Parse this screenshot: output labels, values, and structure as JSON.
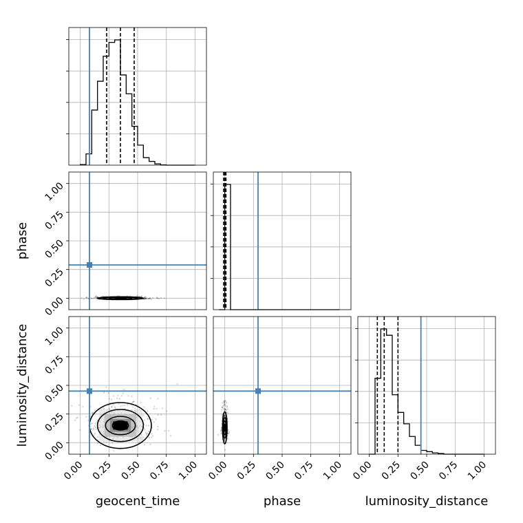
{
  "chart_data": {
    "type": "corner",
    "parameters": [
      "geocent_time",
      "phase",
      "luminosity_distance"
    ],
    "axis_range": [
      -0.1,
      1.1
    ],
    "tick_labels": [
      "0.00",
      "0.25",
      "0.50",
      "0.75",
      "1.00"
    ],
    "tick_values": [
      0,
      0.25,
      0.5,
      0.75,
      1.0
    ],
    "grid": true,
    "truths": {
      "geocent_time": 0.08,
      "phase": 0.29,
      "luminosity_distance": 0.45
    },
    "truth_color": "#4682b4",
    "marginals": [
      {
        "parameter": "geocent_time",
        "bin_width": 0.05,
        "bin_edges_start": 0.0,
        "counts": [
          0.005,
          0.09,
          0.44,
          0.67,
          0.87,
          0.98,
          1.0,
          0.72,
          0.57,
          0.31,
          0.16,
          0.06,
          0.03,
          0.01,
          0.002,
          0,
          0,
          0,
          0,
          0
        ],
        "quantiles": [
          0.23,
          0.35,
          0.47
        ]
      },
      {
        "parameter": "phase",
        "bin_width": 0.05,
        "bin_edges_start": -0.05,
        "counts": [
          0.0,
          1.0,
          0,
          0,
          0,
          0,
          0,
          0,
          0,
          0,
          0,
          0,
          0,
          0,
          0,
          0,
          0,
          0,
          0,
          0,
          0
        ],
        "quantiles": [
          -0.01,
          0.0,
          0.01
        ]
      },
      {
        "parameter": "luminosity_distance",
        "bin_width": 0.05,
        "bin_edges_start": 0.0,
        "counts": [
          0.0,
          0.6,
          0.99,
          0.94,
          0.47,
          0.33,
          0.24,
          0.14,
          0.07,
          0.03,
          0.02,
          0.01,
          0.005,
          0,
          0,
          0,
          0,
          0,
          0,
          0
        ],
        "quantiles": [
          0.07,
          0.13,
          0.25
        ]
      }
    ],
    "contours_2d": [
      {
        "x": "geocent_time",
        "y": "phase",
        "center": [
          0.35,
          0.0
        ],
        "levels_half_width": [
          [
            0.05,
            0.005
          ],
          [
            0.1,
            0.008
          ],
          [
            0.15,
            0.01
          ],
          [
            0.2,
            0.012
          ]
        ]
      },
      {
        "x": "geocent_time",
        "y": "luminosity_distance",
        "center": [
          0.35,
          0.15
        ],
        "levels_half_width": [
          [
            0.07,
            0.04
          ],
          [
            0.13,
            0.08
          ],
          [
            0.2,
            0.14
          ],
          [
            0.27,
            0.2
          ]
        ]
      },
      {
        "x": "phase",
        "y": "luminosity_distance",
        "center": [
          0.0,
          0.13
        ],
        "levels_half_width": [
          [
            0.008,
            0.03
          ],
          [
            0.012,
            0.06
          ],
          [
            0.016,
            0.09
          ],
          [
            0.02,
            0.14
          ]
        ]
      }
    ]
  }
}
